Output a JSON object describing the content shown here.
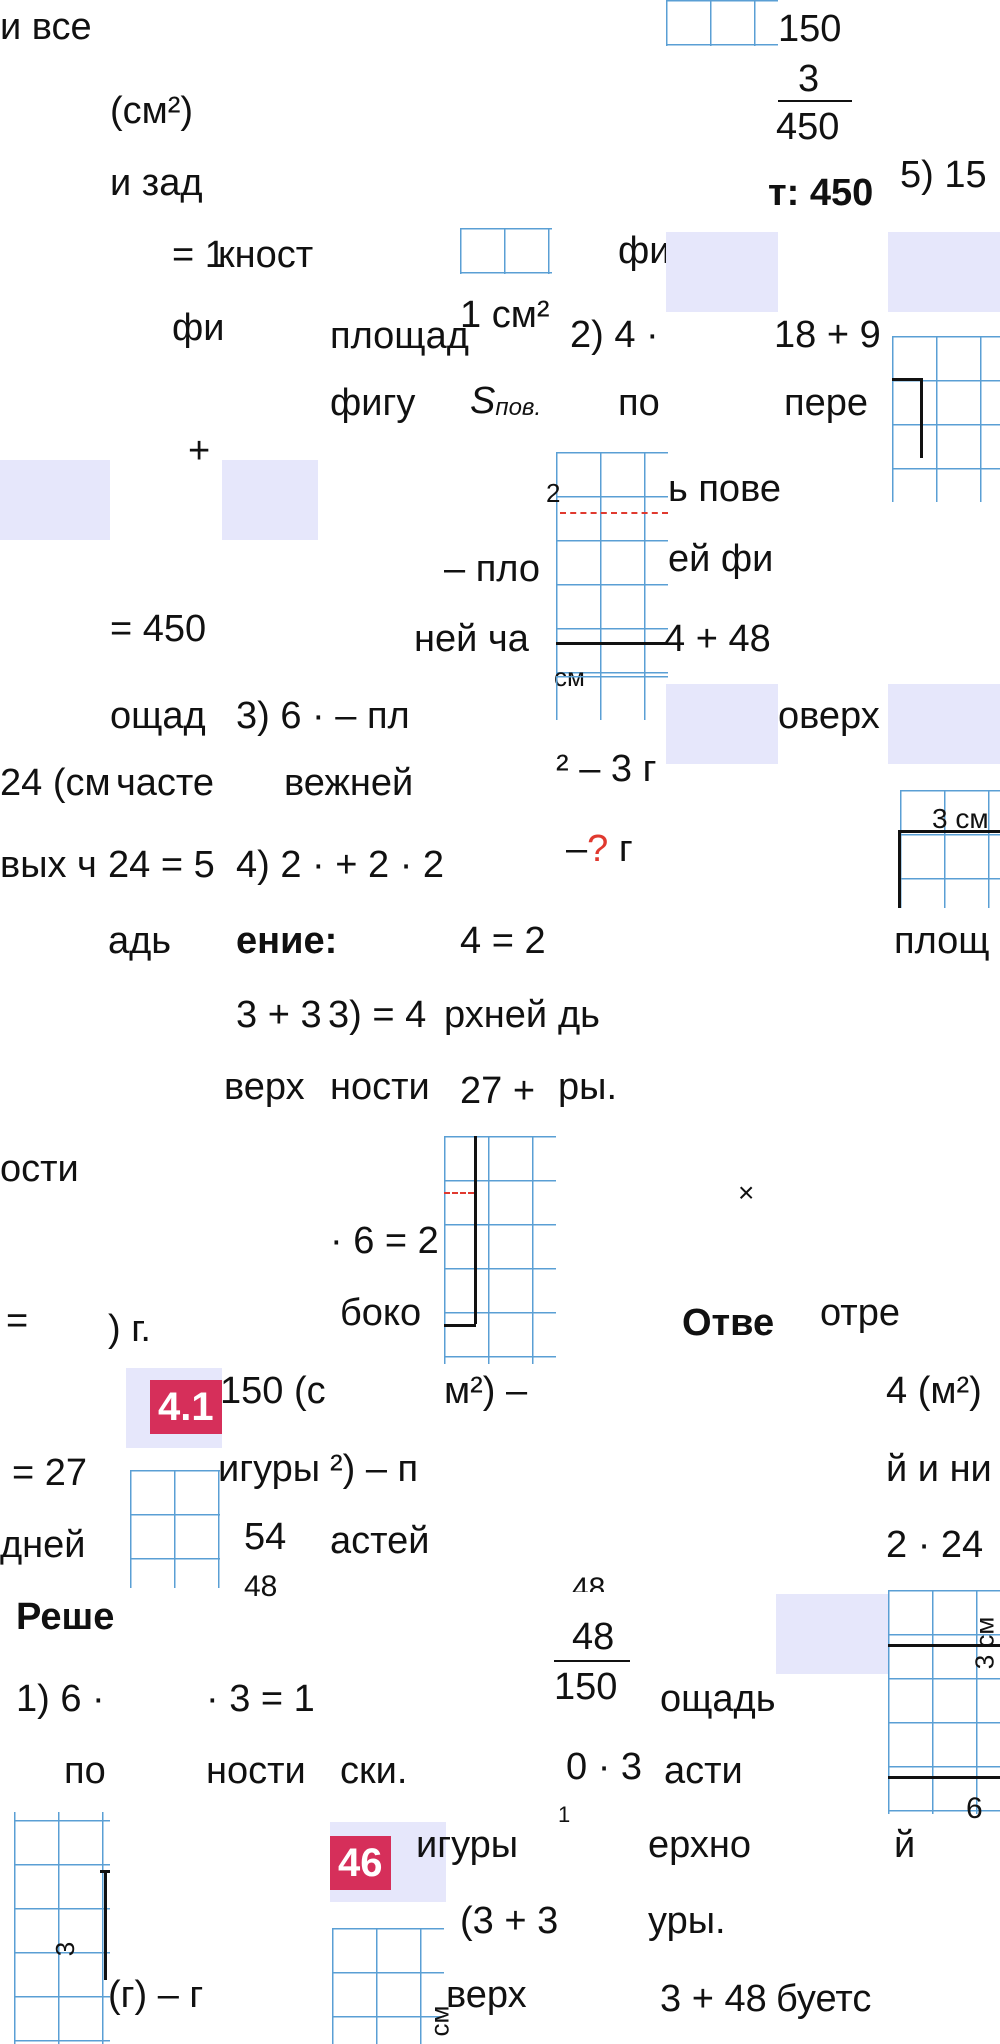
{
  "texts": {
    "t1": "и все",
    "t2": "(см²)",
    "t3": "и зад",
    "t4": "= 1",
    "t5": "кност",
    "t6": "фи",
    "t7": "площад",
    "t8": "фигу",
    "t9": "+",
    "t10": "= 450",
    "t11": "ощад",
    "t12": "3) 6 · – пл",
    "t13": "24 (см",
    "t14": "часте",
    "t15": "вежней",
    "t16": "вых ч",
    "t17": "24 = 5",
    "t18": "4) 2 · + 2 · 2",
    "t19": "адь",
    "t20": "ение:",
    "t21": "3 + 3",
    "t22": "3) = 4",
    "t23": "верх",
    "t24": "ности",
    "t25": "ости",
    "t26": "=",
    "t27": ") г.",
    "t28": "150 (с",
    "t29": "= 27",
    "t30": "игуры",
    "t31": "дней",
    "t32": "54",
    "t33": "48",
    "t34": "Реше",
    "t35": "1) 6 ·",
    "t36": "· 3 = 1",
    "t37": "по",
    "t38": "ности",
    "t39": "(г) – г",
    "m1": "1 см²",
    "m2": "S",
    "m3": "пов.",
    "m4": "– пло",
    "m5": "ней ча",
    "m6": "см",
    "m7": "4 = 2",
    "m8": "рхней",
    "m9": "27 +",
    "m10": "· 6 = 2",
    "m11": "боко",
    "m12": "м²) –",
    "m13": "²) – п",
    "m14": "астей",
    "m15": "ски.",
    "m16": "игуры",
    "m17": "(3 + 3",
    "m18": "верх",
    "m19": "2",
    "m20": "см",
    "r1": "150",
    "r2": "3",
    "r3": "450",
    "r4": "т: 450",
    "r5": "фи",
    "r6": "2) 4 ·",
    "r7": "по",
    "r8": "ь пове",
    "r9": "ей фи",
    "r10": "4 + 48",
    "r11": "² – 3 г",
    "r12": "–",
    "r13": "?",
    "r14": "г",
    "r15": "дь",
    "r16": "ры.",
    "r17": "Отве",
    "r18": "48",
    "r19": "48",
    "r20": "150",
    "r21": "0 · 3",
    "r22": "ощадь",
    "r23": "асти",
    "r24": "ерхно",
    "r25": "уры.",
    "r26": "3 + 48",
    "r27": "1",
    "r28": "×",
    "r29": "18 + 9",
    "r30": "пере",
    "r31": "оверх",
    "x1": "5) 15",
    "x2": "3 см",
    "x3": "площ",
    "x4": "отре",
    "x5": "4 (м²)",
    "x6": "й и ни",
    "x7": "2 · 24",
    "x8": "6",
    "x9": "й",
    "x10": "буетс",
    "x11": "3",
    "x12": "3 см"
  },
  "badges": {
    "b1": "4.1",
    "b2": "46"
  },
  "colors": {
    "grid": "#5a9fd4",
    "shade": "#e6e7fb",
    "badge": "#d62f5a",
    "question": "#e0392f"
  }
}
